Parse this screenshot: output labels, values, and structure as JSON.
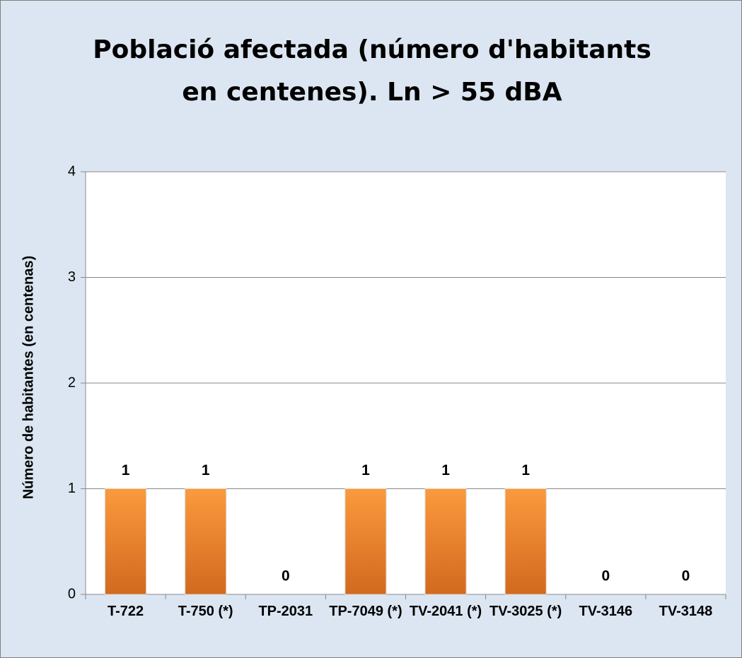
{
  "chart_data": {
    "type": "bar",
    "title": "Població afectada (número d'habitants en centenes). Ln > 55 dBA",
    "ylabel": "Número de habitantes (en centenas)",
    "categories": [
      "T-722",
      "T-750 (*)",
      "TP-2031",
      "TP-7049 (*)",
      "TV-2041 (*)",
      "TV-3025 (*)",
      "TV-3146",
      "TV-3148"
    ],
    "values": [
      1,
      1,
      0,
      1,
      1,
      1,
      0,
      0
    ],
    "color": "#f28e2f",
    "ylim": [
      0,
      4
    ],
    "yticks": [
      0,
      1,
      2,
      3,
      4
    ],
    "grid": true
  }
}
